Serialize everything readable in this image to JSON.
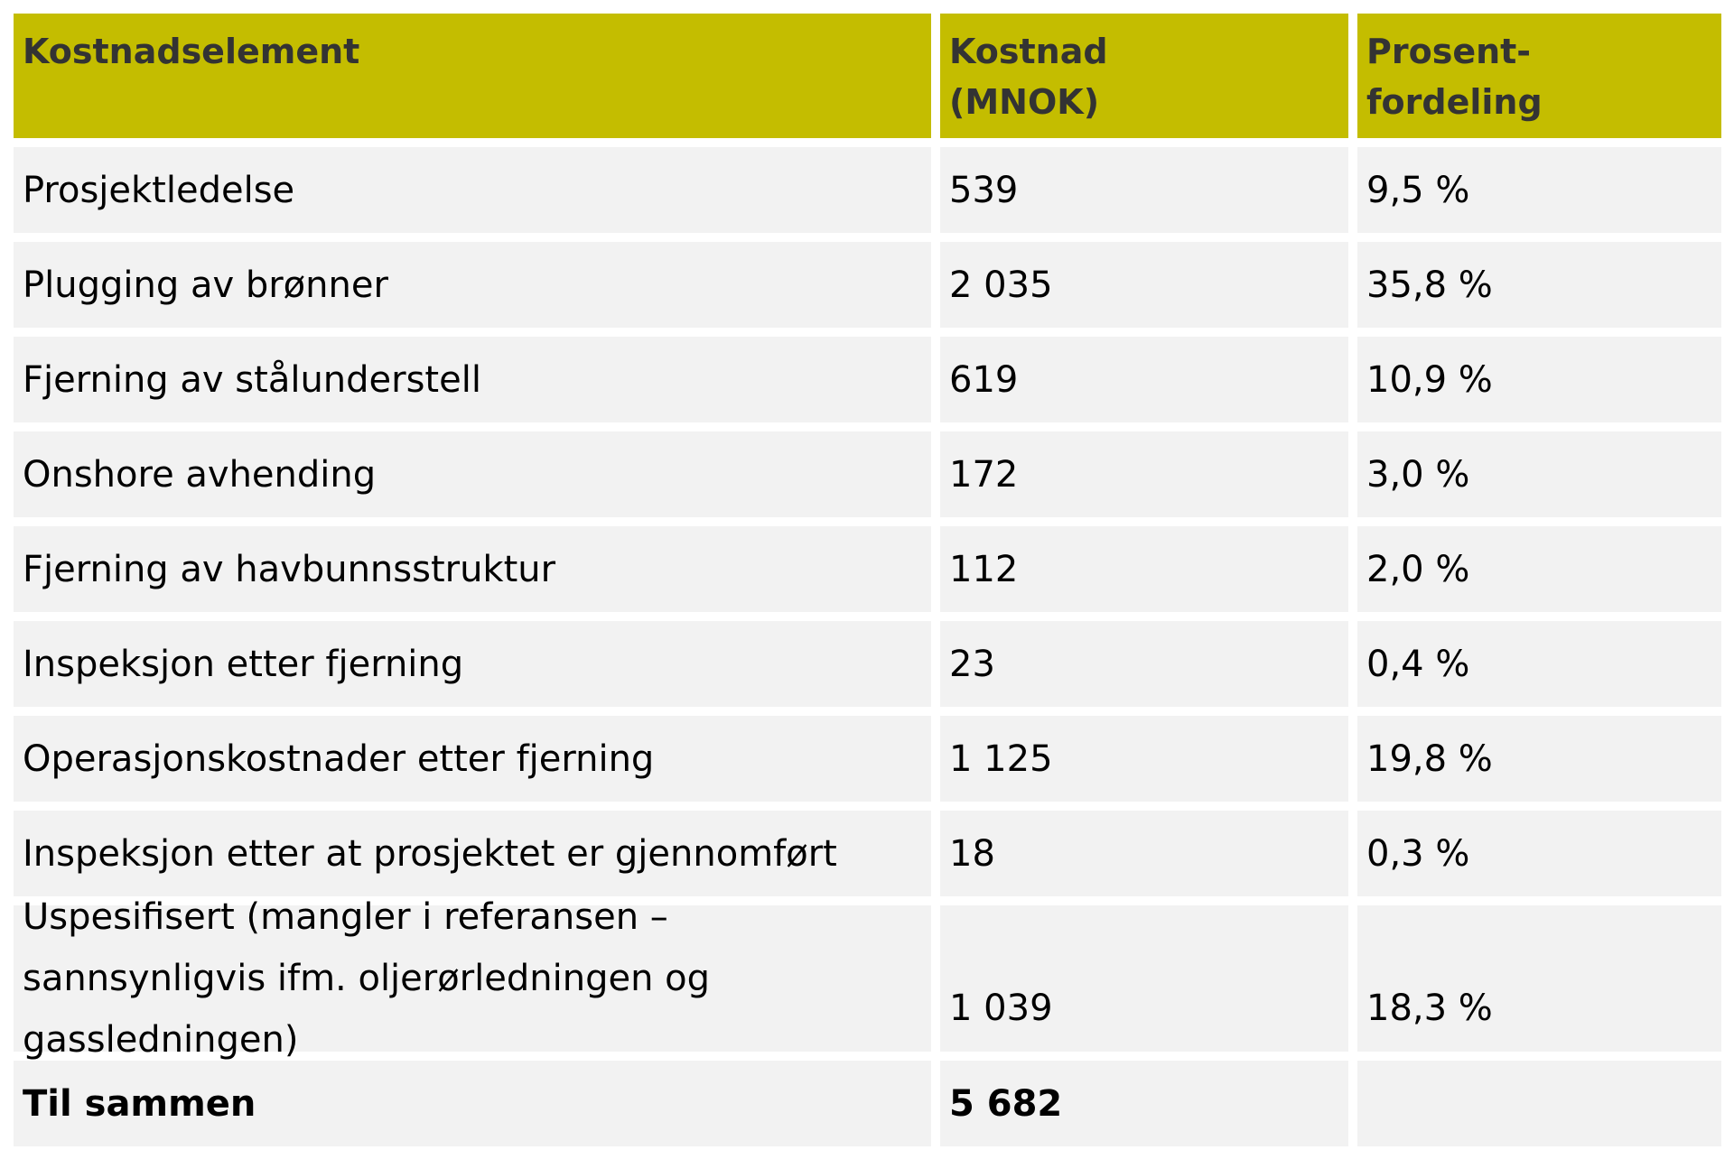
{
  "table": {
    "headers": {
      "element": "Kostnadselement",
      "cost": "Kostnad (MNOK)",
      "share": "Prosent-fordeling"
    },
    "header_lines": {
      "cost_line1": "Kostnad",
      "cost_line2": "(MNOK)",
      "share_line1": "Prosent-",
      "share_line2": "fordeling"
    },
    "rows": [
      {
        "element": "Prosjektledelse",
        "cost": "539",
        "share": "9,5 %"
      },
      {
        "element": "Plugging av brønner",
        "cost": "2 035",
        "share": "35,8 %"
      },
      {
        "element": "Fjerning av stålunderstell",
        "cost": "619",
        "share": "10,9 %"
      },
      {
        "element": "Onshore avhending",
        "cost": "172",
        "share": "3,0 %"
      },
      {
        "element": "Fjerning av havbunnsstruktur",
        "cost": "112",
        "share": "2,0 %"
      },
      {
        "element": "Inspeksjon etter fjerning",
        "cost": "23",
        "share": "0,4 %"
      },
      {
        "element": "Operasjonskostnader etter fjerning",
        "cost": "1 125",
        "share": "19,8 %"
      },
      {
        "element": "Inspeksjon etter at prosjektet er gjennomført",
        "cost": "18",
        "share": "0,3 %"
      },
      {
        "element": "Uspesifisert (mangler i referansen – sannsynligvis ifm. oljerørledningen og gassledningen)",
        "cost": "1 039",
        "share": "18,3 %"
      }
    ],
    "total": {
      "element": "Til sammen",
      "cost": "5 682",
      "share": ""
    }
  },
  "colors": {
    "header_bg": "#c4bd00",
    "header_text": "#333333",
    "cell_bg": "#f2f2f2"
  }
}
